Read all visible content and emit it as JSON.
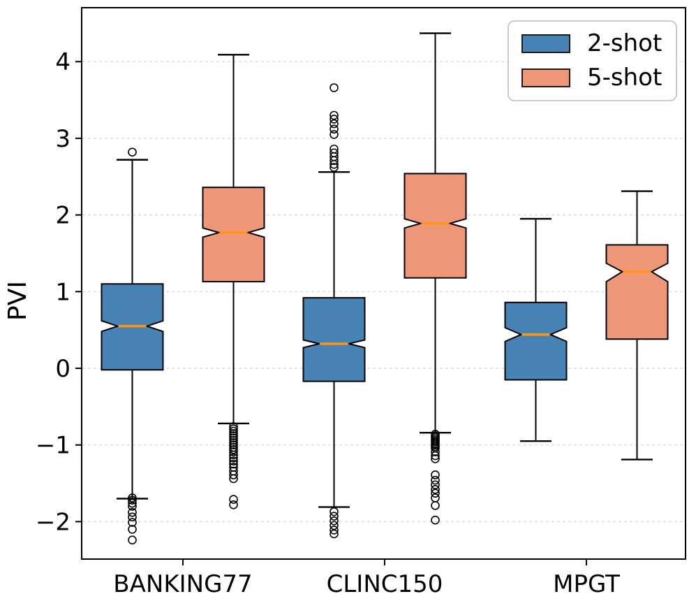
{
  "chart_data": {
    "type": "boxplot",
    "title": "",
    "ylabel": "PVI",
    "xlabel": "",
    "categories": [
      "BANKING77",
      "CLINC150",
      "MPGT"
    ],
    "ylim": [
      -2.49,
      4.7
    ],
    "grid": "horizontal-dashed",
    "legend_position": "upper-right",
    "notched": true,
    "yticks": [
      {
        "v": -2,
        "label": "−2"
      },
      {
        "v": -1,
        "label": "−1"
      },
      {
        "v": 0,
        "label": "0"
      },
      {
        "v": 1,
        "label": "1"
      },
      {
        "v": 2,
        "label": "2"
      },
      {
        "v": 3,
        "label": "3"
      },
      {
        "v": 4,
        "label": "4"
      }
    ],
    "colors": {
      "median": "#ff9511",
      "edge": "#000000",
      "grid": "#dcdcdc",
      "flier_edge": "#000000"
    },
    "series": [
      {
        "name": "2-shot",
        "color": "#4783b4",
        "boxes": [
          {
            "category": "BANKING77",
            "whislo": -1.7,
            "q1": -0.02,
            "med": 0.55,
            "ci_lo": 0.48,
            "ci_hi": 0.62,
            "q3": 1.1,
            "whishi": 2.72,
            "fliers": [
              2.82,
              -1.69,
              -1.72,
              -1.76,
              -1.8,
              -1.88,
              -1.94,
              -2.01,
              -2.1,
              -2.24
            ]
          },
          {
            "category": "CLINC150",
            "whislo": -1.81,
            "q1": -0.17,
            "med": 0.32,
            "ci_lo": 0.27,
            "ci_hi": 0.37,
            "q3": 0.92,
            "whishi": 2.56,
            "fliers": [
              3.66,
              3.3,
              3.25,
              3.19,
              3.12,
              3.05,
              2.86,
              2.81,
              2.76,
              2.71,
              2.66,
              2.62,
              -1.87,
              -1.93,
              -1.99,
              -2.05,
              -2.11,
              -2.16
            ]
          },
          {
            "category": "MPGT",
            "whislo": -0.95,
            "q1": -0.15,
            "med": 0.44,
            "ci_lo": 0.35,
            "ci_hi": 0.53,
            "q3": 0.86,
            "whishi": 1.95,
            "fliers": []
          }
        ]
      },
      {
        "name": "5-shot",
        "color": "#ee9678",
        "boxes": [
          {
            "category": "BANKING77",
            "whislo": -0.72,
            "q1": 1.13,
            "med": 1.77,
            "ci_lo": 1.71,
            "ci_hi": 1.83,
            "q3": 2.36,
            "whishi": 4.09,
            "fliers": [
              -0.76,
              -0.79,
              -0.82,
              -0.85,
              -0.88,
              -0.91,
              -0.94,
              -0.97,
              -1.0,
              -1.03,
              -1.06,
              -1.09,
              -1.13,
              -1.17,
              -1.21,
              -1.25,
              -1.29,
              -1.34,
              -1.39,
              -1.44,
              -1.71,
              -1.78
            ]
          },
          {
            "category": "CLINC150",
            "whislo": -0.84,
            "q1": 1.18,
            "med": 1.89,
            "ci_lo": 1.83,
            "ci_hi": 1.95,
            "q3": 2.54,
            "whishi": 4.37,
            "fliers": [
              -0.86,
              -0.88,
              -0.9,
              -0.92,
              -0.94,
              -0.96,
              -0.98,
              -1.0,
              -1.02,
              -1.04,
              -1.09,
              -1.14,
              -1.18,
              -1.39,
              -1.46,
              -1.52,
              -1.58,
              -1.63,
              -1.69,
              -1.79,
              -1.98
            ]
          },
          {
            "category": "MPGT",
            "whislo": -1.19,
            "q1": 0.38,
            "med": 1.26,
            "ci_lo": 1.13,
            "ci_hi": 1.37,
            "q3": 1.61,
            "whishi": 2.31,
            "fliers": []
          }
        ]
      }
    ]
  }
}
